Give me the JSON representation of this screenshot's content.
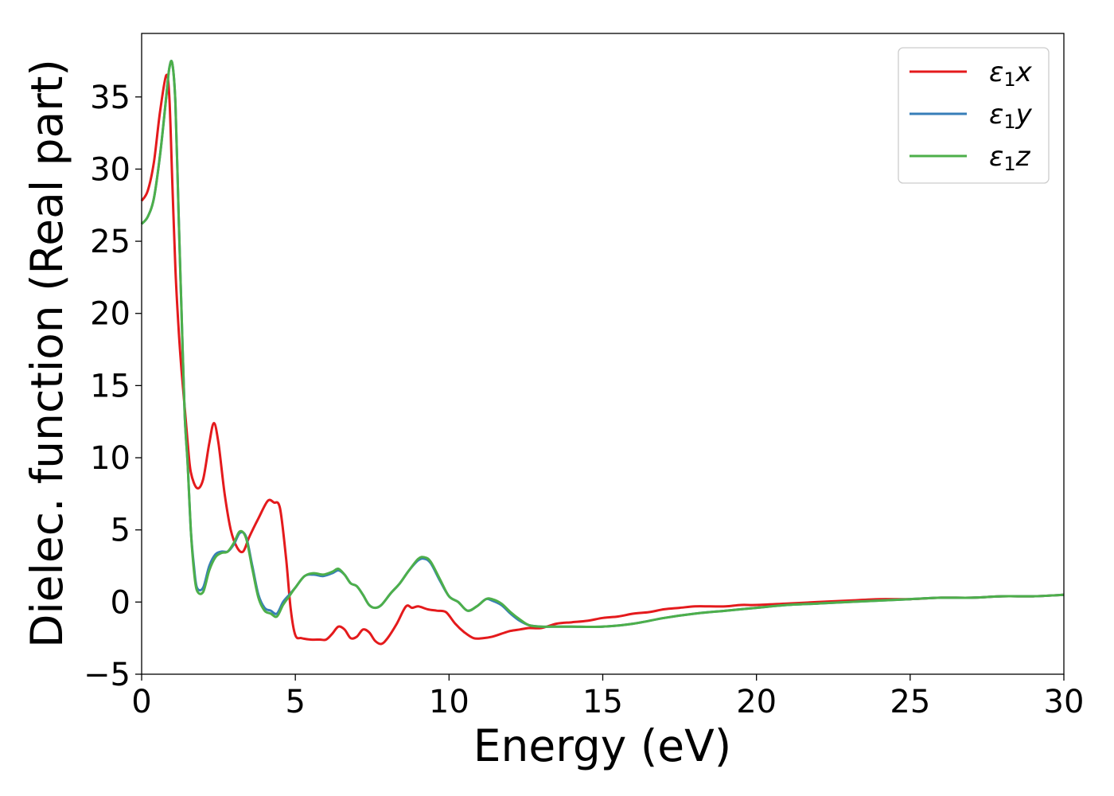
{
  "chart_data": {
    "type": "line",
    "title": "",
    "xlabel": "Energy (eV)",
    "ylabel": "Dielec. function (Real part)",
    "xlim": [
      0,
      30
    ],
    "ylim": [
      -5,
      39.4
    ],
    "xticks": [
      "0",
      "5",
      "10",
      "15",
      "20",
      "25",
      "30"
    ],
    "yticks": [
      "−5",
      "0",
      "5",
      "10",
      "15",
      "20",
      "25",
      "30",
      "35"
    ],
    "grid": false,
    "legend_position": "top-right",
    "series": [
      {
        "name": "ε₁x",
        "legend_base": "ε",
        "legend_sub": "1",
        "legend_suffix": "x",
        "color": "#e41a1c",
        "x": [
          0,
          0.2,
          0.4,
          0.6,
          0.8,
          0.9,
          1.0,
          1.1,
          1.2,
          1.3,
          1.4,
          1.5,
          1.6,
          1.8,
          2.0,
          2.2,
          2.35,
          2.5,
          2.7,
          2.9,
          3.1,
          3.3,
          3.5,
          3.8,
          4.1,
          4.3,
          4.5,
          4.7,
          4.85,
          5.0,
          5.2,
          5.5,
          5.8,
          6.0,
          6.2,
          6.4,
          6.6,
          6.8,
          7.0,
          7.2,
          7.4,
          7.6,
          7.8,
          8.0,
          8.3,
          8.6,
          8.8,
          9.0,
          9.3,
          9.6,
          9.9,
          10.2,
          10.5,
          10.8,
          11.1,
          11.4,
          11.7,
          12.0,
          12.3,
          12.6,
          13.0,
          13.5,
          14.0,
          14.5,
          15.0,
          15.5,
          16.0,
          16.5,
          17.0,
          17.5,
          18.0,
          18.5,
          19.0,
          19.5,
          20.0,
          21.0,
          22.0,
          23.0,
          24.0,
          25.0,
          26.0,
          27.0,
          28.0,
          29.0,
          30.0
        ],
        "y": [
          27.8,
          28.5,
          30.5,
          34.0,
          36.5,
          35.0,
          29.0,
          23.0,
          19.0,
          16.0,
          13.5,
          11.0,
          9.0,
          7.9,
          8.5,
          11.0,
          12.4,
          11.0,
          7.5,
          5.0,
          3.8,
          3.5,
          4.5,
          5.8,
          7.0,
          6.9,
          6.5,
          3.0,
          -0.5,
          -2.3,
          -2.5,
          -2.6,
          -2.6,
          -2.6,
          -2.2,
          -1.7,
          -1.9,
          -2.5,
          -2.4,
          -1.9,
          -2.1,
          -2.7,
          -2.9,
          -2.5,
          -1.5,
          -0.3,
          -0.4,
          -0.3,
          -0.5,
          -0.6,
          -0.7,
          -1.5,
          -2.1,
          -2.5,
          -2.5,
          -2.4,
          -2.2,
          -2.0,
          -1.9,
          -1.8,
          -1.8,
          -1.5,
          -1.4,
          -1.3,
          -1.1,
          -1.0,
          -0.8,
          -0.7,
          -0.5,
          -0.4,
          -0.3,
          -0.3,
          -0.3,
          -0.2,
          -0.2,
          -0.1,
          0.0,
          0.1,
          0.2,
          0.2,
          0.3,
          0.3,
          0.4,
          0.4,
          0.5
        ]
      },
      {
        "name": "ε₁y",
        "legend_base": "ε",
        "legend_sub": "1",
        "legend_suffix": "y",
        "color": "#377eb8",
        "x": [
          0,
          0.2,
          0.4,
          0.6,
          0.8,
          0.9,
          1.0,
          1.1,
          1.2,
          1.3,
          1.4,
          1.5,
          1.6,
          1.7,
          1.8,
          2.0,
          2.2,
          2.4,
          2.6,
          2.8,
          3.0,
          3.2,
          3.4,
          3.6,
          3.8,
          4.0,
          4.2,
          4.4,
          4.6,
          4.8,
          5.0,
          5.3,
          5.6,
          5.9,
          6.2,
          6.4,
          6.6,
          6.8,
          7.0,
          7.2,
          7.4,
          7.6,
          7.8,
          8.1,
          8.4,
          8.7,
          9.0,
          9.2,
          9.4,
          9.7,
          10.0,
          10.3,
          10.6,
          10.9,
          11.2,
          11.4,
          11.7,
          12.0,
          12.3,
          12.6,
          13.0,
          13.5,
          14.0,
          15.0,
          16.0,
          17.0,
          18.0,
          19.0,
          20.0,
          21.0,
          22.0,
          23.0,
          24.0,
          25.0,
          26.0,
          27.0,
          28.0,
          29.0,
          30.0
        ],
        "y": [
          26.2,
          26.7,
          28.0,
          31.0,
          35.0,
          37.0,
          37.3,
          34.5,
          27.0,
          20.0,
          13.0,
          9.5,
          5.0,
          2.5,
          1.0,
          1.0,
          2.5,
          3.3,
          3.5,
          3.5,
          4.0,
          4.8,
          4.5,
          2.5,
          0.5,
          -0.4,
          -0.6,
          -0.8,
          0.0,
          0.5,
          1.0,
          1.8,
          1.9,
          1.8,
          2.0,
          2.2,
          1.9,
          1.3,
          1.1,
          0.5,
          -0.2,
          -0.4,
          -0.2,
          0.6,
          1.3,
          2.2,
          2.9,
          3.0,
          2.7,
          1.5,
          0.4,
          0.0,
          -0.6,
          -0.3,
          0.2,
          0.1,
          -0.2,
          -0.8,
          -1.3,
          -1.6,
          -1.7,
          -1.7,
          -1.7,
          -1.7,
          -1.5,
          -1.1,
          -0.8,
          -0.6,
          -0.4,
          -0.2,
          -0.1,
          0.0,
          0.1,
          0.2,
          0.3,
          0.3,
          0.4,
          0.4,
          0.5
        ]
      },
      {
        "name": "ε₁z",
        "legend_base": "ε",
        "legend_sub": "1",
        "legend_suffix": "z",
        "color": "#4daf4a",
        "x": [
          0,
          0.2,
          0.4,
          0.6,
          0.8,
          0.9,
          1.0,
          1.1,
          1.2,
          1.3,
          1.4,
          1.5,
          1.6,
          1.7,
          1.8,
          2.0,
          2.2,
          2.4,
          2.6,
          2.8,
          3.0,
          3.2,
          3.4,
          3.6,
          3.8,
          4.0,
          4.2,
          4.4,
          4.6,
          4.8,
          5.0,
          5.3,
          5.6,
          5.9,
          6.2,
          6.4,
          6.6,
          6.8,
          7.0,
          7.2,
          7.4,
          7.6,
          7.8,
          8.1,
          8.4,
          8.7,
          9.0,
          9.2,
          9.4,
          9.7,
          10.0,
          10.3,
          10.6,
          10.9,
          11.2,
          11.4,
          11.7,
          12.0,
          12.3,
          12.6,
          13.0,
          13.5,
          14.0,
          15.0,
          16.0,
          17.0,
          18.0,
          19.0,
          20.0,
          21.0,
          22.0,
          23.0,
          24.0,
          25.0,
          26.0,
          27.0,
          28.0,
          29.0,
          30.0
        ],
        "y": [
          26.2,
          26.7,
          28.0,
          31.0,
          35.0,
          37.0,
          37.3,
          34.5,
          27.0,
          20.0,
          13.0,
          9.5,
          5.0,
          2.2,
          0.8,
          0.7,
          2.2,
          3.1,
          3.4,
          3.5,
          4.1,
          4.9,
          4.4,
          2.3,
          0.3,
          -0.6,
          -0.8,
          -1.0,
          -0.2,
          0.4,
          1.0,
          1.8,
          2.0,
          1.9,
          2.1,
          2.3,
          1.9,
          1.3,
          1.1,
          0.5,
          -0.2,
          -0.4,
          -0.2,
          0.6,
          1.3,
          2.2,
          3.0,
          3.1,
          2.8,
          1.6,
          0.4,
          0.0,
          -0.6,
          -0.3,
          0.2,
          0.2,
          -0.1,
          -0.7,
          -1.2,
          -1.6,
          -1.7,
          -1.7,
          -1.7,
          -1.7,
          -1.5,
          -1.1,
          -0.8,
          -0.6,
          -0.4,
          -0.2,
          -0.1,
          0.0,
          0.1,
          0.2,
          0.3,
          0.3,
          0.4,
          0.4,
          0.5
        ]
      }
    ]
  }
}
